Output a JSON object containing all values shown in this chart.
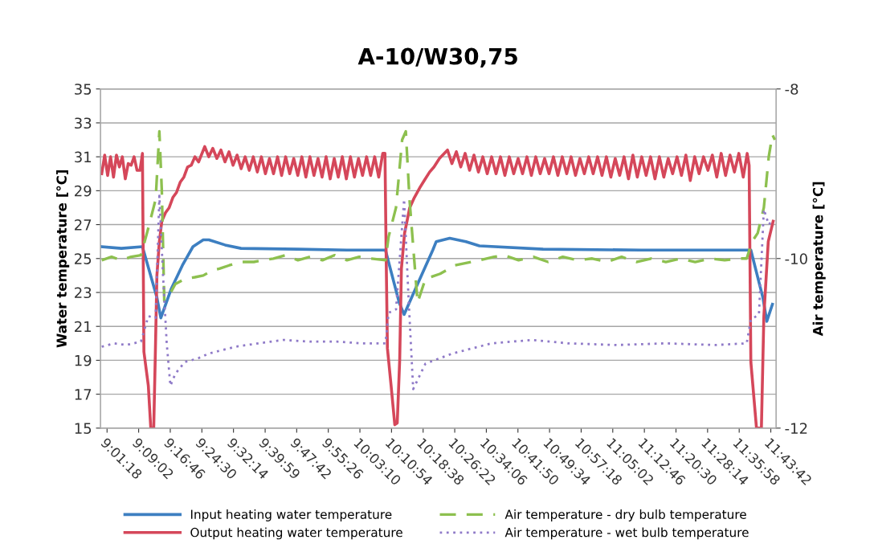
{
  "chart_data": {
    "type": "line",
    "title": "A-10/W30,75",
    "ylabel": "Water temperature [°C]",
    "y2label": "Air temperature [°C]",
    "xlim": [
      8.995,
      11.75
    ],
    "xticks": [
      {
        "value": 9.021667,
        "label": "9:01:18"
      },
      {
        "value": 9.150556,
        "label": "9:09:02"
      },
      {
        "value": 9.279444,
        "label": "9:16:46"
      },
      {
        "value": 9.408333,
        "label": "9:24:30"
      },
      {
        "value": 9.537222,
        "label": "9:32:14"
      },
      {
        "value": 9.666389,
        "label": "9:39:59"
      },
      {
        "value": 9.795,
        "label": "9:47:42"
      },
      {
        "value": 9.923889,
        "label": "9:55:26"
      },
      {
        "value": 10.052778,
        "label": "10:03:10"
      },
      {
        "value": 10.181667,
        "label": "10:10:54"
      },
      {
        "value": 10.310556,
        "label": "10:18:38"
      },
      {
        "value": 10.439444,
        "label": "10:26:22"
      },
      {
        "value": 10.568333,
        "label": "10:34:06"
      },
      {
        "value": 10.697222,
        "label": "10:41:50"
      },
      {
        "value": 10.826111,
        "label": "10:49:34"
      },
      {
        "value": 10.955,
        "label": "10:57:18"
      },
      {
        "value": 11.083889,
        "label": "11:05:02"
      },
      {
        "value": 11.212778,
        "label": "11:12:46"
      },
      {
        "value": 11.341667,
        "label": "11:20:30"
      },
      {
        "value": 11.470556,
        "label": "11:28:14"
      },
      {
        "value": 11.599444,
        "label": "11:35:58"
      },
      {
        "value": 11.728333,
        "label": "11:43:42"
      }
    ],
    "ylim": [
      15,
      35
    ],
    "yticks": [
      15,
      17,
      19,
      21,
      23,
      25,
      27,
      29,
      31,
      33,
      35
    ],
    "y2lim": [
      -12,
      -8
    ],
    "y2ticks": [
      -12,
      -10,
      -8
    ],
    "grid": "y",
    "legend": "bottom",
    "series": [
      {
        "name": "Input heating water temperature",
        "color": "#3d7fc1",
        "line_style": "solid",
        "x": [
          9.0,
          9.08,
          9.166,
          9.225,
          9.241,
          9.283,
          9.329,
          9.372,
          9.414,
          9.437,
          9.503,
          9.568,
          9.8,
          10.0,
          10.157,
          10.213,
          10.233,
          10.288,
          10.35,
          10.364,
          10.419,
          10.485,
          10.54,
          10.8,
          11.2,
          11.63,
          11.647,
          11.696,
          11.712,
          11.735
        ],
        "values": [
          25.7,
          25.6,
          25.7,
          22.7,
          21.5,
          23.2,
          24.6,
          25.7,
          26.1,
          26.1,
          25.8,
          25.6,
          25.55,
          25.5,
          25.5,
          22.4,
          21.7,
          23.5,
          25.5,
          26.0,
          26.2,
          26.0,
          25.75,
          25.55,
          25.5,
          25.5,
          25.5,
          22.7,
          21.3,
          22.3
        ]
      },
      {
        "name": "Output heating water temperature",
        "color": "#d5475a",
        "line_style": "solid",
        "x": [
          9.0,
          9.012,
          9.024,
          9.036,
          9.048,
          9.06,
          9.072,
          9.084,
          9.096,
          9.108,
          9.12,
          9.132,
          9.144,
          9.156,
          9.166,
          9.172,
          9.19,
          9.2,
          9.212,
          9.218,
          9.225,
          9.235,
          9.245,
          9.26,
          9.275,
          9.29,
          9.305,
          9.32,
          9.335,
          9.35,
          9.365,
          9.38,
          9.395,
          9.42,
          9.4365,
          9.453,
          9.4695,
          9.486,
          9.5025,
          9.519,
          9.5355,
          9.552,
          9.5685,
          9.585,
          9.6015,
          9.618,
          9.6345,
          9.651,
          9.6675,
          9.684,
          9.7005,
          9.717,
          9.7335,
          9.75,
          9.7665,
          9.783,
          9.7995,
          9.816,
          9.8325,
          9.849,
          9.8655,
          9.882,
          9.8985,
          9.915,
          9.9315,
          9.948,
          9.9645,
          9.981,
          9.9975,
          10.014,
          10.0305,
          10.047,
          10.0635,
          10.08,
          10.0965,
          10.113,
          10.1295,
          10.146,
          10.155,
          10.16,
          10.165,
          10.18,
          10.195,
          10.205,
          10.215,
          10.222,
          10.235,
          10.256,
          10.275,
          10.298,
          10.315,
          10.337,
          10.355,
          10.377,
          10.41,
          10.428,
          10.446,
          10.464,
          10.482,
          10.5,
          10.518,
          10.536,
          10.554,
          10.572,
          10.59,
          10.608,
          10.626,
          10.644,
          10.662,
          10.68,
          10.698,
          10.716,
          10.734,
          10.752,
          10.77,
          10.788,
          10.806,
          10.824,
          10.842,
          10.86,
          10.878,
          10.896,
          10.914,
          10.932,
          10.95,
          10.968,
          10.986,
          11.004,
          11.022,
          11.04,
          11.058,
          11.076,
          11.094,
          11.112,
          11.13,
          11.148,
          11.166,
          11.184,
          11.202,
          11.22,
          11.238,
          11.256,
          11.274,
          11.292,
          11.31,
          11.328,
          11.346,
          11.364,
          11.382,
          11.4,
          11.418,
          11.436,
          11.454,
          11.472,
          11.49,
          11.508,
          11.526,
          11.544,
          11.562,
          11.58,
          11.598,
          11.616,
          11.632,
          11.64,
          11.647,
          11.67,
          11.69,
          11.7,
          11.718,
          11.738
        ],
        "values": [
          30.0,
          31.1,
          29.9,
          31.0,
          29.8,
          31.1,
          30.4,
          31.0,
          29.7,
          30.6,
          30.5,
          31.0,
          30.2,
          30.2,
          31.2,
          19.5,
          17.5,
          15.0,
          15.0,
          19.0,
          24.0,
          26.0,
          27.2,
          27.7,
          28.0,
          28.6,
          28.9,
          29.5,
          29.8,
          30.4,
          30.5,
          31.0,
          30.7,
          31.6,
          31.0,
          31.5,
          30.9,
          31.4,
          30.7,
          31.3,
          30.5,
          31.1,
          30.3,
          31.0,
          30.2,
          31.0,
          30.1,
          31.0,
          30.0,
          30.9,
          30.0,
          31.0,
          29.9,
          31.0,
          30.0,
          30.9,
          29.9,
          31.0,
          29.8,
          31.0,
          29.9,
          30.9,
          29.8,
          31.0,
          29.7,
          30.9,
          29.8,
          31.0,
          29.7,
          31.0,
          29.8,
          30.9,
          29.9,
          31.0,
          29.9,
          31.0,
          29.8,
          31.2,
          31.2,
          25.0,
          19.7,
          17.5,
          15.2,
          15.3,
          19.0,
          24.4,
          26.5,
          28.0,
          28.6,
          29.2,
          29.6,
          30.1,
          30.4,
          30.9,
          31.4,
          30.6,
          31.3,
          30.4,
          31.2,
          30.2,
          31.1,
          30.1,
          31.0,
          30.0,
          31.0,
          30.0,
          31.0,
          29.9,
          31.0,
          30.0,
          30.9,
          30.0,
          31.0,
          29.9,
          31.0,
          30.0,
          30.9,
          30.0,
          31.0,
          29.9,
          31.0,
          30.0,
          31.0,
          29.9,
          30.9,
          30.0,
          31.0,
          30.0,
          31.0,
          29.9,
          31.0,
          29.8,
          30.9,
          29.9,
          31.0,
          29.7,
          31.1,
          29.8,
          31.0,
          29.9,
          31.0,
          29.7,
          31.0,
          29.8,
          30.9,
          30.0,
          31.0,
          29.9,
          31.1,
          29.6,
          31.0,
          30.0,
          31.0,
          30.2,
          31.1,
          29.8,
          31.2,
          29.9,
          31.1,
          30.1,
          31.2,
          29.8,
          31.2,
          30.5,
          18.9,
          15.0,
          15.0,
          21.6,
          26.0,
          27.2
        ]
      },
      {
        "name": "Air temperature - dry bulb temperature",
        "color": "#8dc04f",
        "line_style": "dashed",
        "axis": "y2",
        "x": [
          9.0,
          9.04,
          9.08,
          9.12,
          9.16,
          9.19,
          9.22,
          9.235,
          9.245,
          9.255,
          9.27,
          9.3,
          9.339,
          9.38,
          9.414,
          9.45,
          9.48,
          9.52,
          9.568,
          9.62,
          9.7,
          9.75,
          9.8,
          9.85,
          9.9,
          9.95,
          10.0,
          10.05,
          10.1,
          10.157,
          10.17,
          10.2,
          10.225,
          10.24,
          10.255,
          10.288,
          10.32,
          10.38,
          10.44,
          10.54,
          10.6,
          10.64,
          10.7,
          10.76,
          10.82,
          10.88,
          10.94,
          11.0,
          11.06,
          11.12,
          11.18,
          11.24,
          11.3,
          11.36,
          11.42,
          11.48,
          11.54,
          11.6,
          11.63,
          11.652,
          11.675,
          11.7,
          11.72,
          11.735,
          11.745
        ],
        "values": [
          -10.02,
          -9.98,
          -10.02,
          -9.98,
          -9.96,
          -9.64,
          -9.3,
          -8.5,
          -9.2,
          -10.5,
          -10.46,
          -10.3,
          -10.24,
          -10.22,
          -10.2,
          -10.14,
          -10.12,
          -10.08,
          -10.04,
          -10.04,
          -10.0,
          -9.96,
          -10.02,
          -9.98,
          -10.02,
          -9.96,
          -10.02,
          -9.98,
          -10.0,
          -10.02,
          -9.74,
          -9.4,
          -8.6,
          -8.5,
          -9.3,
          -10.52,
          -10.24,
          -10.18,
          -10.08,
          -10.02,
          -9.98,
          -9.96,
          -10.02,
          -9.98,
          -10.04,
          -9.98,
          -10.02,
          -10.0,
          -10.04,
          -9.98,
          -10.04,
          -10.0,
          -10.04,
          -10.0,
          -10.04,
          -10.0,
          -10.02,
          -10.0,
          -10.0,
          -9.8,
          -9.7,
          -9.4,
          -8.8,
          -8.54,
          -8.6
        ]
      },
      {
        "name": "Air temperature - wet bulb temperature",
        "color": "#8f7ac8",
        "line_style": "dotted",
        "axis": "y2",
        "x": [
          9.0,
          9.05,
          9.1,
          9.16,
          9.19,
          9.22,
          9.235,
          9.25,
          9.265,
          9.28,
          9.3,
          9.339,
          9.39,
          9.437,
          9.545,
          9.64,
          9.74,
          9.85,
          9.96,
          10.06,
          10.157,
          10.17,
          10.2,
          10.233,
          10.25,
          10.27,
          10.32,
          10.43,
          10.59,
          10.756,
          10.9,
          11.1,
          11.3,
          11.5,
          11.63,
          11.647,
          11.68,
          11.7,
          11.72,
          11.738
        ],
        "values": [
          -11.04,
          -11.0,
          -11.02,
          -10.98,
          -10.68,
          -10.7,
          -9.26,
          -10.2,
          -11.0,
          -11.5,
          -11.36,
          -11.22,
          -11.18,
          -11.12,
          -11.04,
          -11.0,
          -10.96,
          -10.98,
          -10.98,
          -11.0,
          -11.0,
          -10.64,
          -10.6,
          -9.3,
          -10.4,
          -11.54,
          -11.24,
          -11.12,
          -11.0,
          -10.96,
          -11.0,
          -11.02,
          -11.0,
          -11.02,
          -11.0,
          -10.72,
          -10.66,
          -9.42,
          -9.6,
          -9.54
        ]
      }
    ]
  }
}
